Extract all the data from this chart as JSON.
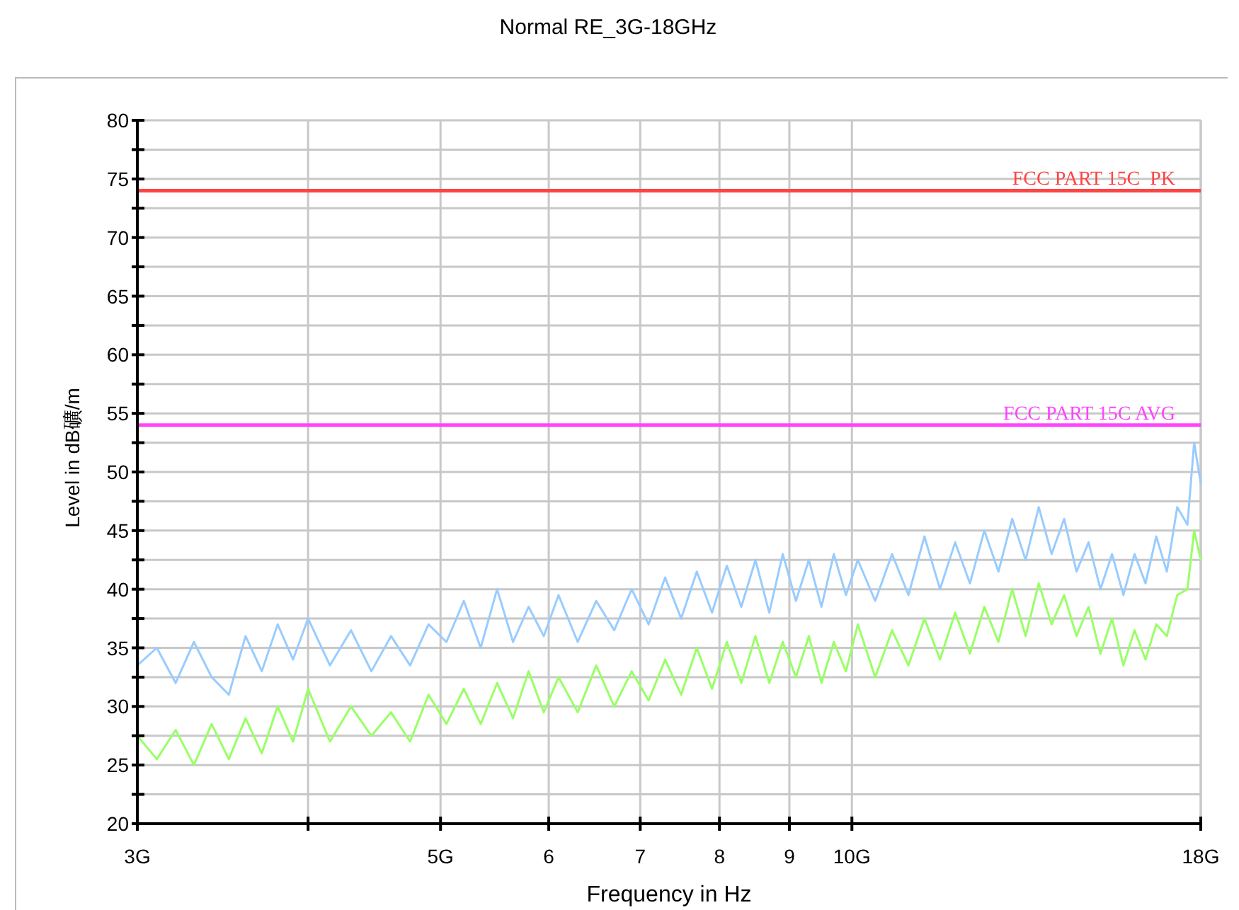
{
  "chart_data": {
    "type": "line",
    "title": "Normal RE_3G-18GHz",
    "xlabel": "Frequency in Hz",
    "ylabel": "Level in dB礦/m",
    "log": "x",
    "grid": true,
    "line_style": "solid",
    "marker": "none",
    "xlim": [
      3,
      18
    ],
    "xticks": [
      {
        "value": 3,
        "label": "3G"
      },
      {
        "value": 4,
        "label": null
      },
      {
        "value": 5,
        "label": "5G"
      },
      6,
      7,
      8,
      9,
      {
        "value": 10,
        "label": "10G"
      },
      {
        "value": 18,
        "label": "18G"
      }
    ],
    "ylim": [
      20,
      80
    ],
    "yticks": [
      20,
      {
        "value": 22.5,
        "label": null
      },
      25,
      {
        "value": 27.5,
        "label": null
      },
      30,
      {
        "value": 32.5,
        "label": null
      },
      35,
      {
        "value": 37.5,
        "label": null
      },
      40,
      {
        "value": 42.5,
        "label": null
      },
      45,
      {
        "value": 47.5,
        "label": null
      },
      50,
      {
        "value": 52.5,
        "label": null
      },
      55,
      {
        "value": 57.5,
        "label": null
      },
      60,
      {
        "value": 62.5,
        "label": null
      },
      65,
      {
        "value": 67.5,
        "label": null
      },
      70,
      {
        "value": 72.5,
        "label": null
      },
      75,
      {
        "value": 77.5,
        "label": null
      },
      80
    ],
    "ref_lines": [
      {
        "axis": "y",
        "value": 74,
        "label": "FCC PART 15C  PK",
        "color": "#ff4444"
      },
      {
        "axis": "y",
        "value": 54,
        "label": "FCC PART 15C AVG",
        "color": "#ff44ff"
      }
    ],
    "series": [
      {
        "color": "#99ccff",
        "x": [
          3.0,
          3.1,
          3.2,
          3.3,
          3.4,
          3.5,
          3.6,
          3.7,
          3.8,
          3.9,
          4.0,
          4.15,
          4.3,
          4.45,
          4.6,
          4.75,
          4.9,
          5.05,
          5.2,
          5.35,
          5.5,
          5.65,
          5.8,
          5.95,
          6.1,
          6.3,
          6.5,
          6.7,
          6.9,
          7.1,
          7.3,
          7.5,
          7.7,
          7.9,
          8.1,
          8.3,
          8.5,
          8.7,
          8.9,
          9.1,
          9.3,
          9.5,
          9.7,
          9.9,
          10.1,
          10.4,
          10.7,
          11.0,
          11.3,
          11.6,
          11.9,
          12.2,
          12.5,
          12.8,
          13.1,
          13.4,
          13.7,
          14.0,
          14.3,
          14.6,
          14.9,
          15.2,
          15.5,
          15.8,
          16.1,
          16.4,
          16.7,
          17.0,
          17.3,
          17.6,
          17.8,
          18.0
        ],
        "values": [
          33.5,
          35.0,
          32.0,
          35.5,
          32.5,
          31.0,
          36.0,
          33.0,
          37.0,
          34.0,
          37.5,
          33.5,
          36.5,
          33.0,
          36.0,
          33.5,
          37.0,
          35.5,
          39.0,
          35.0,
          40.0,
          35.5,
          38.5,
          36.0,
          39.5,
          35.5,
          39.0,
          36.5,
          40.0,
          37.0,
          41.0,
          37.5,
          41.5,
          38.0,
          42.0,
          38.5,
          42.5,
          38.0,
          43.0,
          39.0,
          42.5,
          38.5,
          43.0,
          39.5,
          42.5,
          39.0,
          43.0,
          39.5,
          44.5,
          40.0,
          44.0,
          40.5,
          45.0,
          41.5,
          46.0,
          42.5,
          47.0,
          43.0,
          46.0,
          41.5,
          44.0,
          40.0,
          43.0,
          39.5,
          43.0,
          40.5,
          44.5,
          41.5,
          47.0,
          45.5,
          52.5,
          49.0
        ]
      },
      {
        "color": "#99ff66",
        "x": [
          3.0,
          3.1,
          3.2,
          3.3,
          3.4,
          3.5,
          3.6,
          3.7,
          3.8,
          3.9,
          4.0,
          4.15,
          4.3,
          4.45,
          4.6,
          4.75,
          4.9,
          5.05,
          5.2,
          5.35,
          5.5,
          5.65,
          5.8,
          5.95,
          6.1,
          6.3,
          6.5,
          6.7,
          6.9,
          7.1,
          7.3,
          7.5,
          7.7,
          7.9,
          8.1,
          8.3,
          8.5,
          8.7,
          8.9,
          9.1,
          9.3,
          9.5,
          9.7,
          9.9,
          10.1,
          10.4,
          10.7,
          11.0,
          11.3,
          11.6,
          11.9,
          12.2,
          12.5,
          12.8,
          13.1,
          13.4,
          13.7,
          14.0,
          14.3,
          14.6,
          14.9,
          15.2,
          15.5,
          15.8,
          16.1,
          16.4,
          16.7,
          17.0,
          17.3,
          17.6,
          17.8,
          18.0
        ],
        "values": [
          27.5,
          25.5,
          28.0,
          25.0,
          28.5,
          25.5,
          29.0,
          26.0,
          30.0,
          27.0,
          31.5,
          27.0,
          30.0,
          27.5,
          29.5,
          27.0,
          31.0,
          28.5,
          31.5,
          28.5,
          32.0,
          29.0,
          33.0,
          29.5,
          32.5,
          29.5,
          33.5,
          30.0,
          33.0,
          30.5,
          34.0,
          31.0,
          35.0,
          31.5,
          35.5,
          32.0,
          36.0,
          32.0,
          35.5,
          32.5,
          36.0,
          32.0,
          35.5,
          33.0,
          37.0,
          32.5,
          36.5,
          33.5,
          37.5,
          34.0,
          38.0,
          34.5,
          38.5,
          35.5,
          40.0,
          36.0,
          40.5,
          37.0,
          39.5,
          36.0,
          38.5,
          34.5,
          37.5,
          33.5,
          36.5,
          34.0,
          37.0,
          36.0,
          39.5,
          40.0,
          45.0,
          42.5
        ]
      }
    ]
  }
}
